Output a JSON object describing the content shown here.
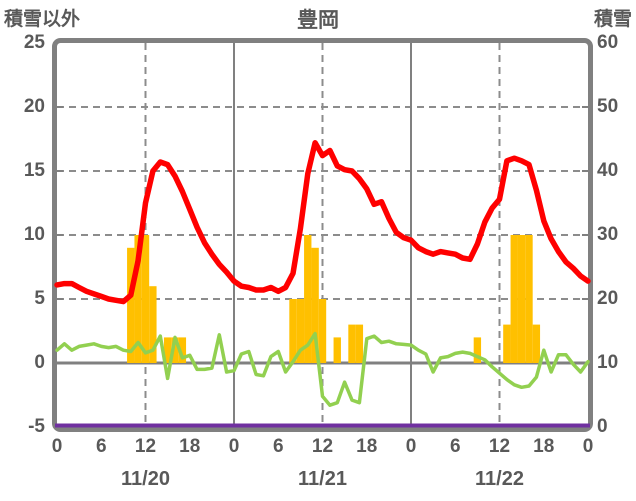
{
  "header": {
    "left_axis_title": "積雪以外",
    "chart_title": "豊岡",
    "right_axis_title": "積雪"
  },
  "colors": {
    "red_line": "#FF0000",
    "green_line": "#92D050",
    "orange_bar": "#FFC000",
    "purple_line": "#7030A0",
    "frame": "#808080",
    "grid_dashed": "#8C8C8C",
    "grid_solid": "#808080",
    "text": "#595959"
  },
  "chart_data": {
    "type": "line",
    "title": "豊岡",
    "left_axis": {
      "label": "積雪以外",
      "min": -5,
      "max": 25,
      "tick_labels": [
        "25",
        "20",
        "15",
        "10",
        "5",
        "0",
        "-5"
      ],
      "tick_values": [
        25,
        20,
        15,
        10,
        5,
        0,
        -5
      ],
      "dashed_gridline_values": [
        20,
        15,
        10,
        5
      ],
      "zero_line_value": 0
    },
    "right_axis": {
      "label": "積雪",
      "min": 0,
      "max": 60,
      "tick_labels": [
        "60",
        "50",
        "40",
        "30",
        "20",
        "10",
        "0"
      ],
      "tick_values": [
        60,
        50,
        40,
        30,
        20,
        10,
        0
      ]
    },
    "x_axis": {
      "total_hours": 72,
      "hour_tick_step": 6,
      "hour_tick_labels": [
        "0",
        "6",
        "12",
        "18",
        "0",
        "6",
        "12",
        "18",
        "0",
        "6",
        "12",
        "18",
        "0"
      ],
      "date_labels": [
        "11/20",
        "11/21",
        "11/22"
      ],
      "date_label_hours": [
        12,
        36,
        60
      ],
      "solid_gridline_hours": [
        24,
        48
      ],
      "dashed_gridline_hours": [
        12,
        36,
        60
      ]
    },
    "series": [
      {
        "name": "red-line",
        "type": "line",
        "axis": "left",
        "color_key": "red_line",
        "hourly_values": [
          6.1,
          6.2,
          6.2,
          5.9,
          5.6,
          5.4,
          5.2,
          5.0,
          4.9,
          4.8,
          5.3,
          8.0,
          12.5,
          15.0,
          15.7,
          15.5,
          14.6,
          13.4,
          12.0,
          10.6,
          9.4,
          8.5,
          7.7,
          7.1,
          6.4,
          6.0,
          5.9,
          5.7,
          5.7,
          5.9,
          5.6,
          5.9,
          7.0,
          10.5,
          14.8,
          17.2,
          16.2,
          16.6,
          15.4,
          15.1,
          15.0,
          14.4,
          13.6,
          12.4,
          12.6,
          11.3,
          10.2,
          9.8,
          9.6,
          9.0,
          8.7,
          8.5,
          8.7,
          8.6,
          8.5,
          8.2,
          8.1,
          9.3,
          11.0,
          12.1,
          12.8,
          15.8,
          16.0,
          15.8,
          15.5,
          13.5,
          11.1,
          9.7,
          8.7,
          7.9,
          7.4,
          6.8,
          6.4
        ]
      },
      {
        "name": "green-line",
        "type": "line",
        "axis": "left",
        "color_key": "green_line",
        "hourly_values": [
          1.0,
          1.5,
          1.0,
          1.3,
          1.4,
          1.5,
          1.3,
          1.2,
          1.3,
          1.0,
          0.9,
          1.6,
          0.8,
          1.0,
          2.1,
          -1.2,
          2.0,
          0.4,
          0.6,
          -0.5,
          -0.5,
          -0.4,
          2.2,
          -0.7,
          -0.6,
          0.7,
          0.9,
          -0.9,
          -1.0,
          0.5,
          0.9,
          -0.7,
          0.1,
          1.0,
          1.4,
          2.3,
          -2.6,
          -3.3,
          -3.1,
          -1.5,
          -2.9,
          -3.1,
          1.9,
          2.1,
          1.6,
          1.7,
          1.5,
          1.45,
          1.4,
          1.0,
          0.7,
          -0.7,
          0.4,
          0.5,
          0.75,
          0.85,
          0.75,
          0.5,
          0.25,
          -0.3,
          -0.8,
          -1.3,
          -1.7,
          -1.9,
          -1.8,
          -1.1,
          1.0,
          -0.7,
          0.65,
          0.65,
          -0.1,
          -0.7,
          0.1
        ]
      },
      {
        "name": "orange-bars",
        "type": "bar",
        "axis": "left",
        "color_key": "orange_bar",
        "bars": [
          {
            "hour": 10,
            "value": 9
          },
          {
            "hour": 11,
            "value": 10
          },
          {
            "hour": 12,
            "value": 10
          },
          {
            "hour": 13,
            "value": 6
          },
          {
            "hour": 15,
            "value": 2
          },
          {
            "hour": 16,
            "value": 2
          },
          {
            "hour": 17,
            "value": 2
          },
          {
            "hour": 32,
            "value": 5
          },
          {
            "hour": 33,
            "value": 5
          },
          {
            "hour": 34,
            "value": 10
          },
          {
            "hour": 35,
            "value": 9
          },
          {
            "hour": 36,
            "value": 5
          },
          {
            "hour": 38,
            "value": 2
          },
          {
            "hour": 40,
            "value": 3
          },
          {
            "hour": 41,
            "value": 3
          },
          {
            "hour": 57,
            "value": 2
          },
          {
            "hour": 61,
            "value": 3
          },
          {
            "hour": 62,
            "value": 10
          },
          {
            "hour": 63,
            "value": 10
          },
          {
            "hour": 64,
            "value": 10
          },
          {
            "hour": 65,
            "value": 3
          }
        ]
      },
      {
        "name": "purple-line",
        "type": "line",
        "axis": "right",
        "color_key": "purple_line",
        "constant_value": 0
      }
    ]
  }
}
